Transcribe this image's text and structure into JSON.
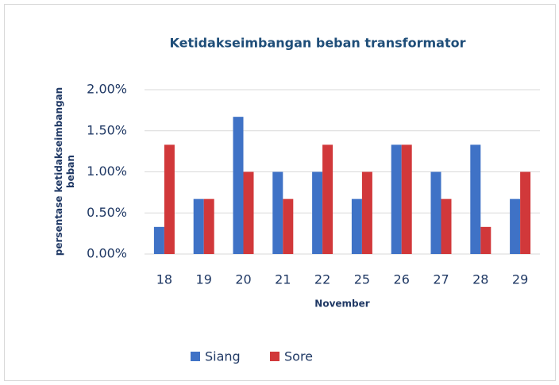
{
  "chart_data": {
    "type": "bar",
    "title": "Ketidakseimbangan beban transformator",
    "x_label": "November",
    "y_label": "persentase ketidakseimbangan beban",
    "categories": [
      "18",
      "19",
      "20",
      "21",
      "22",
      "25",
      "26",
      "27",
      "28",
      "29"
    ],
    "series": [
      {
        "name": "Siang",
        "color": "#3f72c6",
        "values": [
          0.33,
          0.67,
          1.67,
          1.0,
          1.0,
          0.67,
          1.33,
          1.0,
          1.33,
          0.67
        ]
      },
      {
        "name": "Sore",
        "color": "#d1383a",
        "values": [
          1.33,
          0.67,
          1.0,
          0.67,
          1.33,
          1.0,
          1.33,
          0.67,
          0.33,
          1.0
        ]
      }
    ],
    "ylim": [
      0,
      2
    ],
    "yticks": [
      {
        "value": 0,
        "label": "0.00%"
      },
      {
        "value": 0.5,
        "label": "0.50%"
      },
      {
        "value": 1,
        "label": "1.00%"
      },
      {
        "value": 1.5,
        "label": "1.50%"
      },
      {
        "value": 2,
        "label": "2.00%"
      }
    ],
    "grid": true,
    "legend": "bottom"
  }
}
